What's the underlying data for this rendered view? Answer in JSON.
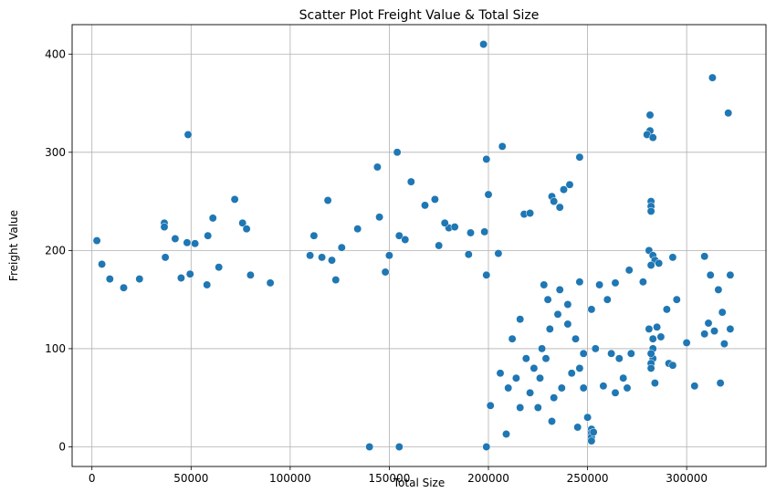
{
  "chart_data": {
    "type": "scatter",
    "title": "Scatter Plot Freight Value & Total Size",
    "xlabel": "Total Size",
    "ylabel": "Freight Value",
    "xlim": [
      -10000,
      340000
    ],
    "ylim": [
      -20,
      430
    ],
    "xticks": [
      0,
      50000,
      100000,
      150000,
      200000,
      250000,
      300000
    ],
    "xtick_labels": [
      "0",
      "50000",
      "100000",
      "150000",
      "200000",
      "250000",
      "300000"
    ],
    "yticks": [
      0,
      100,
      200,
      300,
      400
    ],
    "ytick_labels": [
      "0",
      "100",
      "200",
      "300",
      "400"
    ],
    "grid": true,
    "legend": "none",
    "marker_color": "#1f77b4",
    "marker_edge_color": "#ffffff",
    "series": [
      {
        "points": [
          [
            48500,
            318
          ],
          [
            197500,
            410
          ],
          [
            313000,
            376
          ],
          [
            321000,
            340
          ],
          [
            281500,
            338
          ],
          [
            281500,
            322
          ],
          [
            280000,
            318
          ],
          [
            283000,
            315
          ],
          [
            154000,
            300
          ],
          [
            207000,
            306
          ],
          [
            144000,
            285
          ],
          [
            199000,
            293
          ],
          [
            246000,
            295
          ],
          [
            161000,
            270
          ],
          [
            241000,
            267
          ],
          [
            238000,
            262
          ],
          [
            232000,
            255
          ],
          [
            233000,
            250
          ],
          [
            72000,
            252
          ],
          [
            119000,
            251
          ],
          [
            173000,
            252
          ],
          [
            168000,
            246
          ],
          [
            200000,
            257
          ],
          [
            236000,
            244
          ],
          [
            282000,
            250
          ],
          [
            282000,
            245
          ],
          [
            282000,
            240
          ],
          [
            36500,
            228
          ],
          [
            76000,
            228
          ],
          [
            78000,
            222
          ],
          [
            61000,
            233
          ],
          [
            58500,
            215
          ],
          [
            36500,
            224
          ],
          [
            42000,
            212
          ],
          [
            48000,
            208
          ],
          [
            52000,
            207
          ],
          [
            2500,
            210
          ],
          [
            145000,
            234
          ],
          [
            180000,
            223
          ],
          [
            191000,
            218
          ],
          [
            198000,
            219
          ],
          [
            218000,
            237
          ],
          [
            221000,
            238
          ],
          [
            134000,
            222
          ],
          [
            155000,
            215
          ],
          [
            158000,
            211
          ],
          [
            112000,
            215
          ],
          [
            126000,
            203
          ],
          [
            178000,
            228
          ],
          [
            183000,
            224
          ],
          [
            37000,
            193
          ],
          [
            5000,
            186
          ],
          [
            64000,
            183
          ],
          [
            45000,
            172
          ],
          [
            58000,
            165
          ],
          [
            49500,
            176
          ],
          [
            80000,
            175
          ],
          [
            90000,
            167
          ],
          [
            110000,
            195
          ],
          [
            116000,
            193
          ],
          [
            121000,
            190
          ],
          [
            123000,
            170
          ],
          [
            148000,
            178
          ],
          [
            150000,
            195
          ],
          [
            175000,
            205
          ],
          [
            190000,
            196
          ],
          [
            199000,
            175
          ],
          [
            205000,
            197
          ],
          [
            228000,
            165
          ],
          [
            246000,
            168
          ],
          [
            264000,
            167
          ],
          [
            271000,
            180
          ],
          [
            278000,
            168
          ],
          [
            281000,
            200
          ],
          [
            283000,
            195
          ],
          [
            284000,
            190
          ],
          [
            282000,
            185
          ],
          [
            286000,
            187
          ],
          [
            293000,
            193
          ],
          [
            309000,
            194
          ],
          [
            312000,
            175
          ],
          [
            316000,
            160
          ],
          [
            322000,
            175
          ],
          [
            318000,
            137
          ],
          [
            322000,
            120
          ],
          [
            319000,
            105
          ],
          [
            317000,
            65
          ],
          [
            304000,
            62
          ],
          [
            300000,
            106
          ],
          [
            295000,
            150
          ],
          [
            309000,
            115
          ],
          [
            290000,
            140
          ],
          [
            291000,
            85
          ],
          [
            293000,
            83
          ],
          [
            252000,
            140
          ],
          [
            256000,
            165
          ],
          [
            260000,
            150
          ],
          [
            254000,
            100
          ],
          [
            262000,
            95
          ],
          [
            266000,
            90
          ],
          [
            272000,
            95
          ],
          [
            268000,
            70
          ],
          [
            270000,
            60
          ],
          [
            264000,
            55
          ],
          [
            258000,
            62
          ],
          [
            252000,
            18
          ],
          [
            252000,
            14
          ],
          [
            252000,
            10
          ],
          [
            252000,
            6
          ],
          [
            253000,
            15
          ],
          [
            250000,
            30
          ],
          [
            245000,
            20
          ],
          [
            225000,
            40
          ],
          [
            232000,
            26
          ],
          [
            199000,
            0
          ],
          [
            209000,
            13
          ],
          [
            201000,
            42
          ],
          [
            155000,
            0
          ],
          [
            140000,
            0
          ],
          [
            9000,
            171
          ],
          [
            16000,
            162
          ],
          [
            24000,
            171
          ],
          [
            283000,
            100
          ],
          [
            283000,
            90
          ],
          [
            282000,
            85
          ],
          [
            282000,
            95
          ],
          [
            282000,
            80
          ],
          [
            283000,
            110
          ],
          [
            284000,
            65
          ],
          [
            281000,
            120
          ],
          [
            285000,
            122
          ],
          [
            287000,
            112
          ],
          [
            311000,
            126
          ],
          [
            314000,
            118
          ],
          [
            219000,
            90
          ],
          [
            223000,
            80
          ],
          [
            227000,
            100
          ],
          [
            231000,
            120
          ],
          [
            235000,
            135
          ],
          [
            240000,
            125
          ],
          [
            244000,
            110
          ],
          [
            248000,
            95
          ],
          [
            214000,
            70
          ],
          [
            210000,
            60
          ],
          [
            206000,
            75
          ],
          [
            212000,
            110
          ],
          [
            216000,
            130
          ],
          [
            230000,
            150
          ],
          [
            236000,
            160
          ],
          [
            240000,
            145
          ],
          [
            242000,
            75
          ],
          [
            237000,
            60
          ],
          [
            233000,
            50
          ],
          [
            229000,
            90
          ],
          [
            246000,
            80
          ],
          [
            248000,
            60
          ],
          [
            216000,
            40
          ],
          [
            221000,
            55
          ],
          [
            226000,
            70
          ]
        ]
      }
    ]
  }
}
